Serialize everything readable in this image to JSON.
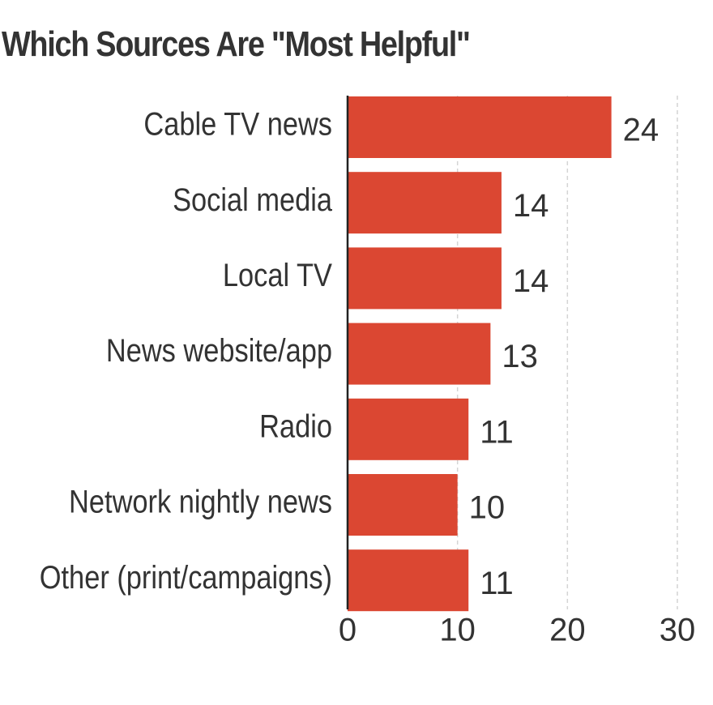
{
  "chart_data": {
    "type": "bar",
    "orientation": "horizontal",
    "title": "Which Sources Are \"Most Helpful\"",
    "categories": [
      "Cable TV news",
      "Social media",
      "Local TV",
      "News website/app",
      "Radio",
      "Network nightly news",
      "Other (print/campaigns)"
    ],
    "values": [
      24,
      14,
      14,
      13,
      11,
      10,
      11
    ],
    "xlabel": "",
    "ylabel": "",
    "xlim": [
      0,
      30
    ],
    "xticks": [
      0,
      10,
      20,
      30
    ],
    "grid": "vertical dashed",
    "data_labels": true,
    "bar_color": "#db4732",
    "text_color": "#333333",
    "grid_color": "#d4d4d4",
    "axis_color": "#222222"
  }
}
